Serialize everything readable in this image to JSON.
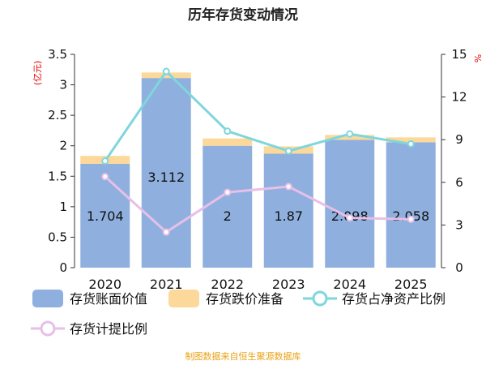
{
  "chart_data": {
    "type": "bar",
    "title": "历年存货变动情况",
    "categories": [
      "2020",
      "2021",
      "2022",
      "2023",
      "2024",
      "2025"
    ],
    "ylim_left": [
      0,
      3.5
    ],
    "yticks_left": [
      "0",
      "0.5",
      "1",
      "1.5",
      "2",
      "2.5",
      "3",
      "3.5"
    ],
    "ylabel_left": "(亿元)",
    "ylim_right": [
      0,
      15
    ],
    "yticks_right": [
      "0",
      "3",
      "6",
      "9",
      "12",
      "15"
    ],
    "ylabel_right": "%",
    "series": [
      {
        "name": "存货账面价值",
        "kind": "bar",
        "axis": "left",
        "color": "#8fb0de",
        "values": [
          1.704,
          3.112,
          2,
          1.87,
          2.098,
          2.058
        ]
      },
      {
        "name": "存货跌价准备",
        "kind": "bar",
        "axis": "left",
        "color": "#fcd89a",
        "values": [
          0.13,
          0.09,
          0.12,
          0.12,
          0.08,
          0.08
        ]
      },
      {
        "name": "存货占净资产比例",
        "kind": "line",
        "axis": "right",
        "color": "#7fd6dc",
        "values": [
          7.5,
          13.8,
          9.6,
          8.2,
          9.4,
          8.7
        ]
      },
      {
        "name": "存货计提比例",
        "kind": "line",
        "axis": "right",
        "color": "#e7bfe7",
        "values": [
          6.4,
          2.5,
          5.3,
          5.7,
          3.5,
          3.4
        ]
      }
    ],
    "data_labels": [
      "1.704",
      "3.112",
      "2",
      "1.87",
      "2.098",
      "2.058"
    ],
    "grid": false,
    "legend_position": "bottom"
  },
  "footer": "制图数据来自恒生聚源数据库"
}
